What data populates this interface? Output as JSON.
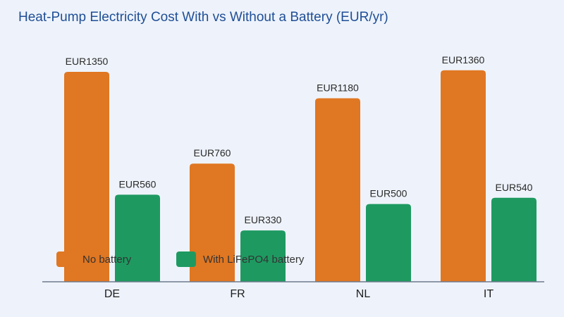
{
  "chart_data": {
    "type": "bar",
    "title": "Heat-Pump Electricity Cost With vs Without a Battery (EUR/yr)",
    "xlabel": "",
    "ylabel": "",
    "categories": [
      "DE",
      "FR",
      "NL",
      "IT"
    ],
    "series": [
      {
        "name": "No battery",
        "color": "#e07722",
        "values": [
          1350,
          760,
          1180,
          1360
        ],
        "labels": [
          "EUR1350",
          "EUR760",
          "EUR1180",
          "EUR1360"
        ]
      },
      {
        "name": "With LiFePO4 battery",
        "color": "#1e9a61",
        "values": [
          560,
          330,
          500,
          540
        ],
        "labels": [
          "EUR560",
          "EUR330",
          "EUR500",
          "EUR540"
        ]
      }
    ],
    "ylim": [
      0,
      1400
    ],
    "grid": false,
    "legend_position": "bottom-left inside"
  }
}
